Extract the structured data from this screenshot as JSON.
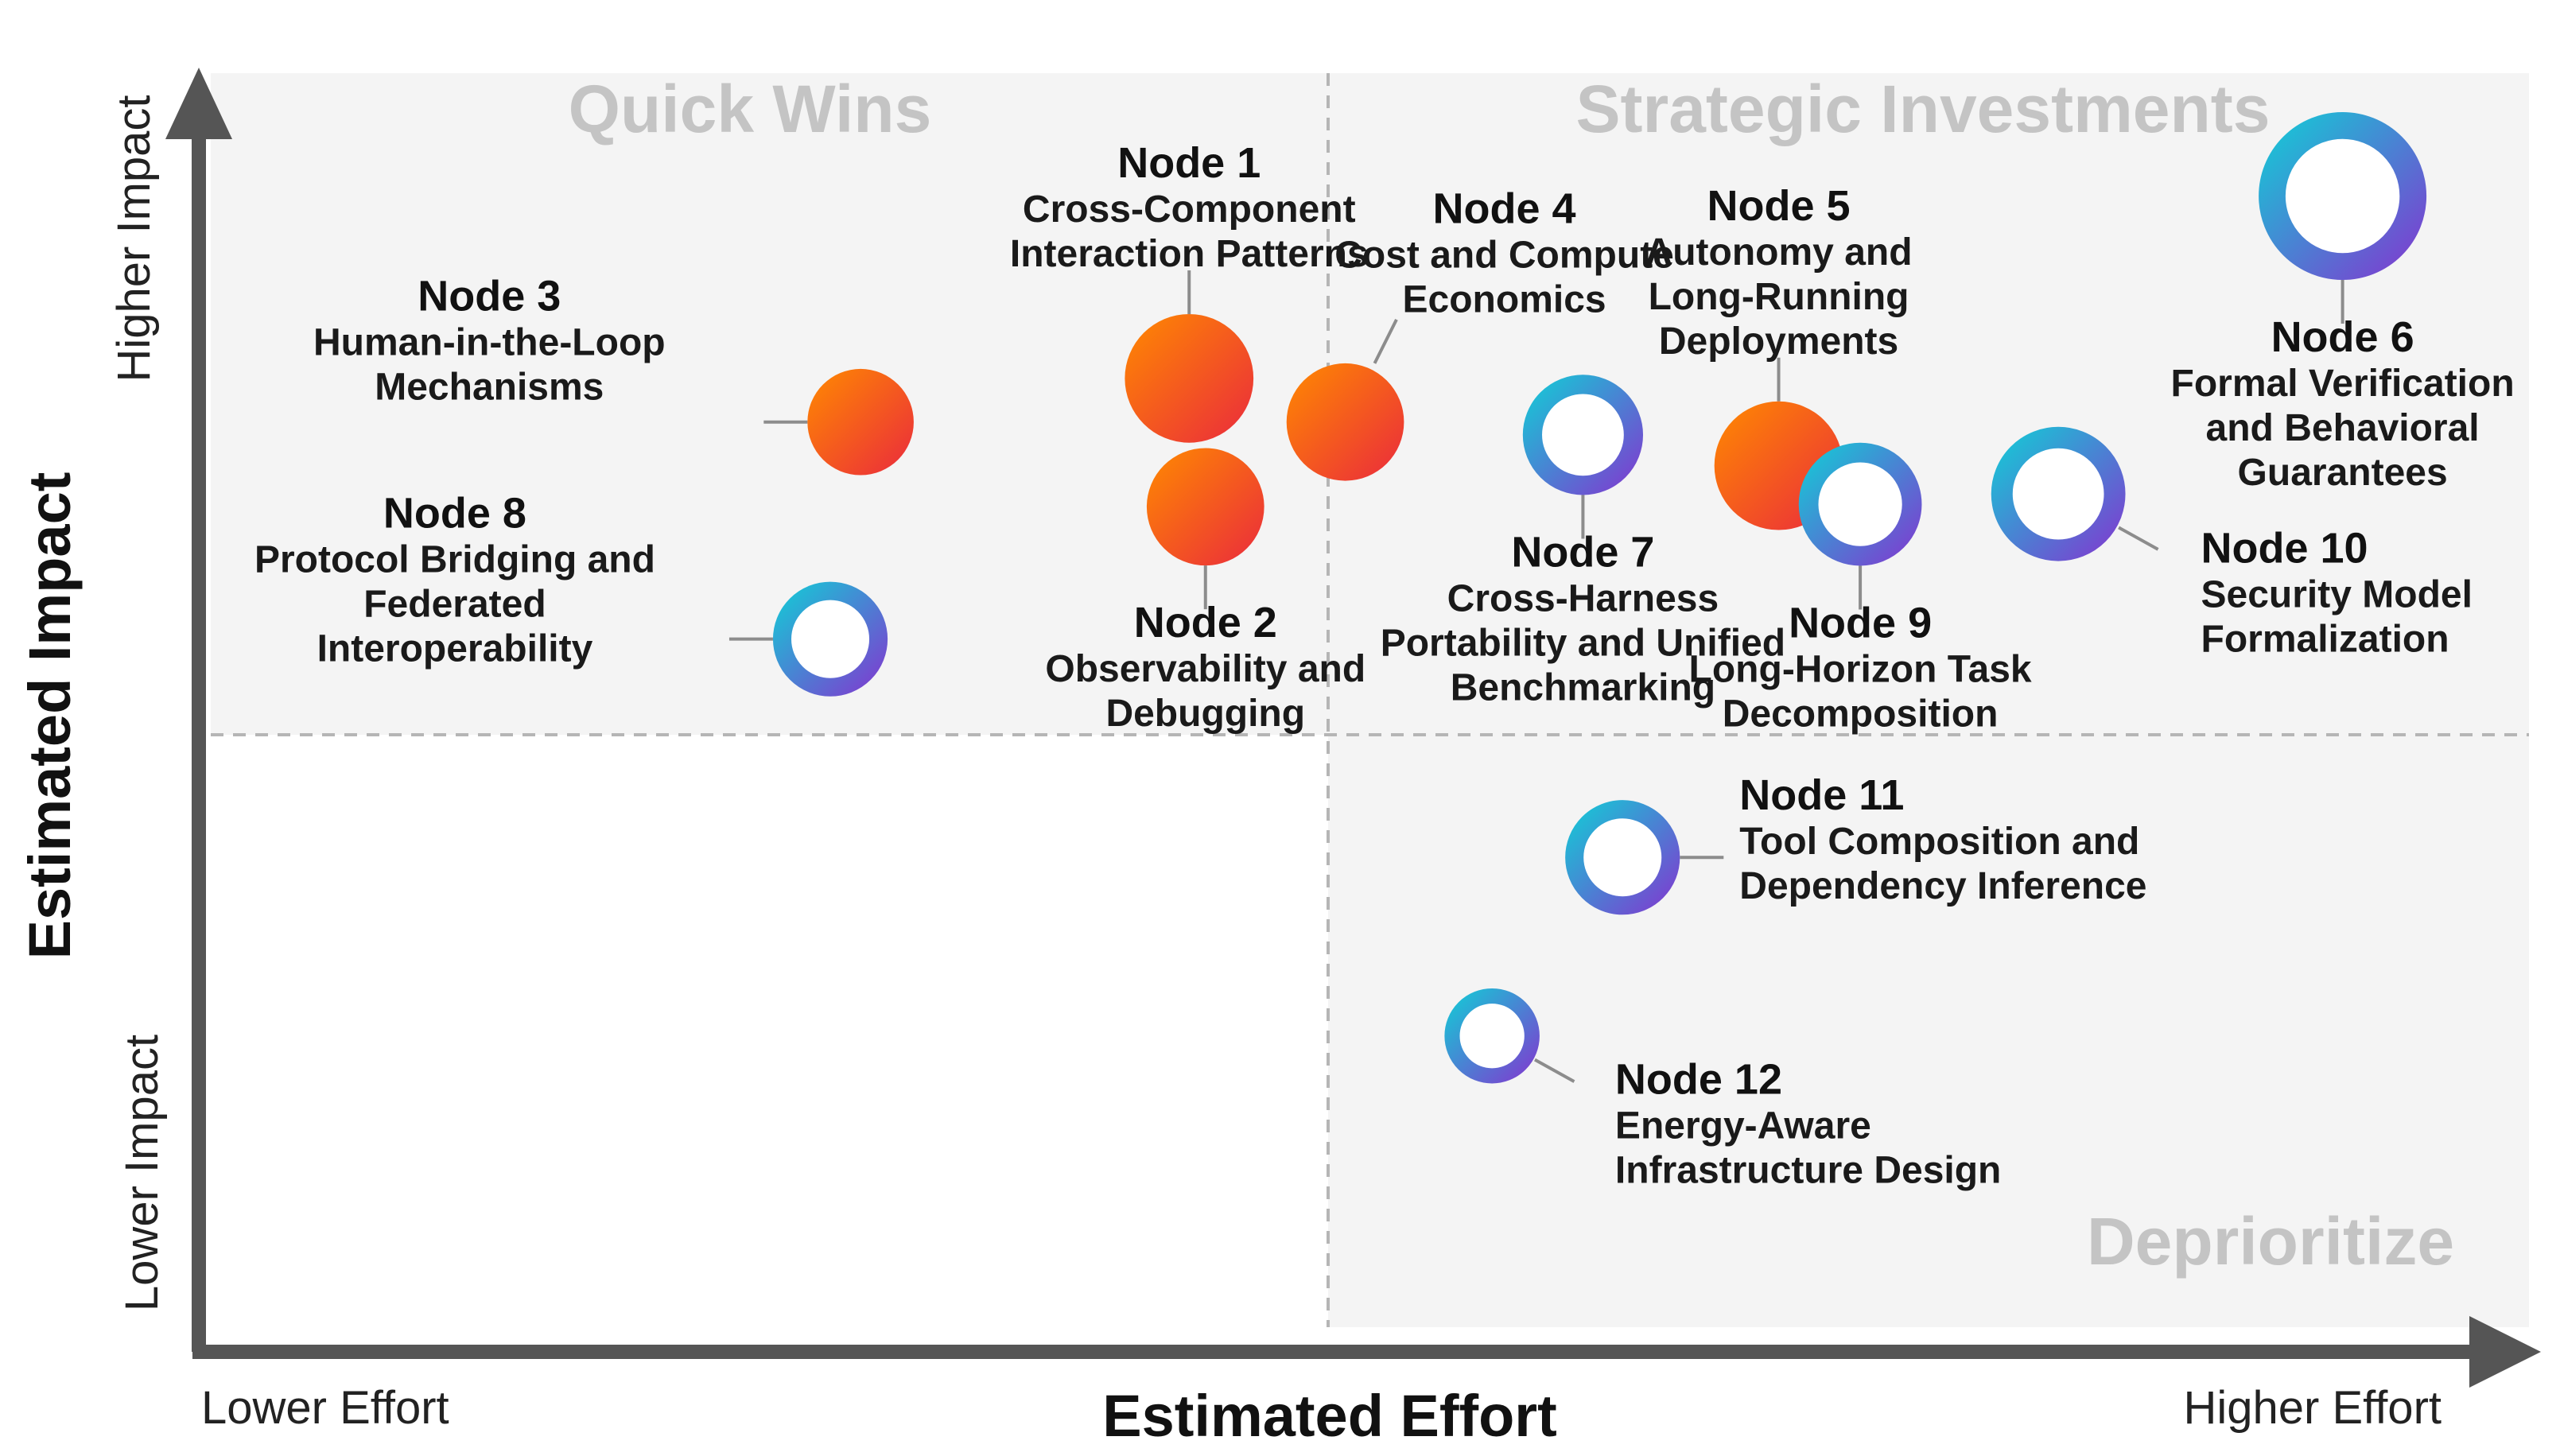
{
  "chart_data": {
    "type": "scatter",
    "title": "",
    "xlabel": "Estimated Effort",
    "ylabel": "Estimated Impact",
    "x_end_labels": {
      "low": "Lower Effort",
      "high": "Higher Effort"
    },
    "y_end_labels": {
      "low": "Lower Impact",
      "high": "Higher Impact"
    },
    "xlim": [
      0,
      10
    ],
    "ylim": [
      0,
      10
    ],
    "dividers": {
      "x": 4.93,
      "y": 4.7
    },
    "grid": false,
    "legend": "none",
    "quadrants": [
      {
        "key": "quick_wins",
        "label": "Quick Wins",
        "position": "top-left"
      },
      {
        "key": "strategic",
        "label": "Strategic Investments",
        "position": "top-right"
      },
      {
        "key": "deprioritize",
        "label": "Deprioritize",
        "position": "bottom-right"
      }
    ],
    "marker_styles": {
      "filled": {
        "gradient": [
          "#ff8a00",
          "#ea2a3d"
        ]
      },
      "ring": {
        "gradient": [
          "#18c5d6",
          "#7c3fd0"
        ]
      }
    },
    "points": [
      {
        "id": "n1",
        "name": "Node 1",
        "desc": [
          "Cross-Component",
          "Interaction Patterns"
        ],
        "x": 4.25,
        "y": 7.58,
        "style": "filled",
        "r": 0.46,
        "label_side": "above"
      },
      {
        "id": "n2",
        "name": "Node 2",
        "desc": [
          "Observability and",
          "Debugging"
        ],
        "x": 4.32,
        "y": 6.58,
        "style": "filled",
        "r": 0.42,
        "label_side": "below"
      },
      {
        "id": "n3",
        "name": "Node 3",
        "desc": [
          "Human-in-the-Loop",
          "Mechanisms"
        ],
        "x": 2.84,
        "y": 7.24,
        "style": "filled",
        "r": 0.38,
        "label_side": "left"
      },
      {
        "id": "n4",
        "name": "Node 4",
        "desc": [
          "Cost and Compute",
          "Economics"
        ],
        "x": 4.92,
        "y": 7.24,
        "style": "filled",
        "r": 0.42,
        "label_side": "above-right"
      },
      {
        "id": "n5",
        "name": "Node 5",
        "desc": [
          "Autonomy and",
          "Long-Running",
          "Deployments"
        ],
        "x": 6.78,
        "y": 6.9,
        "style": "filled",
        "r": 0.46,
        "label_side": "above"
      },
      {
        "id": "n6",
        "name": "Node 6",
        "desc": [
          "Formal Verification",
          "and Behavioral",
          "Guarantees"
        ],
        "x": 9.2,
        "y": 9.0,
        "style": "ring",
        "r": 0.6,
        "label_side": "below"
      },
      {
        "id": "n7",
        "name": "Node 7",
        "desc": [
          "Cross-Harness",
          "Portability and Unified",
          "Benchmarking"
        ],
        "x": 5.94,
        "y": 7.14,
        "style": "ring",
        "r": 0.43,
        "label_side": "below"
      },
      {
        "id": "n8",
        "name": "Node 8",
        "desc": [
          "Protocol Bridging and",
          "Federated",
          "Interoperability"
        ],
        "x": 2.71,
        "y": 5.55,
        "style": "ring",
        "r": 0.41,
        "label_side": "left"
      },
      {
        "id": "n9",
        "name": "Node 9",
        "desc": [
          "Long-Horizon Task",
          "Decomposition"
        ],
        "x": 7.13,
        "y": 6.6,
        "style": "ring",
        "r": 0.44,
        "label_side": "below"
      },
      {
        "id": "n10",
        "name": "Node 10",
        "desc": [
          "Security Model",
          "Formalization"
        ],
        "x": 7.98,
        "y": 6.68,
        "style": "ring",
        "r": 0.48,
        "label_side": "below-right"
      },
      {
        "id": "n11",
        "name": "Node 11",
        "desc": [
          "Tool Composition and",
          "Dependency Inference"
        ],
        "x": 6.11,
        "y": 3.85,
        "style": "ring",
        "r": 0.41,
        "label_side": "right"
      },
      {
        "id": "n12",
        "name": "Node 12",
        "desc": [
          "Energy-Aware",
          "Infrastructure Design"
        ],
        "x": 5.55,
        "y": 2.46,
        "style": "ring",
        "r": 0.34,
        "label_side": "below-right"
      }
    ]
  }
}
